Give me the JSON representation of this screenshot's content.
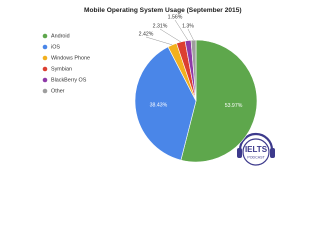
{
  "chart_data": {
    "type": "pie",
    "title": "Mobile Operating System Usage (September 2015)",
    "categories": [
      "Android",
      "iOS",
      "Windows Phone",
      "Symbian",
      "BlackBerry OS",
      "Other"
    ],
    "values": [
      53.97,
      38.43,
      2.42,
      2.31,
      1.56,
      1.3
    ],
    "value_labels": [
      "53.97%",
      "38.43%",
      "2.42%",
      "2.31%",
      "1.56%",
      "1.3%"
    ],
    "colors": [
      "#5ea74c",
      "#4a86e8",
      "#f2b01e",
      "#dc3f31",
      "#8e3aa8",
      "#9e9e9e"
    ],
    "legend": "left"
  },
  "watermark": {
    "line1": "IELTS",
    "line2": "PODCAST"
  }
}
